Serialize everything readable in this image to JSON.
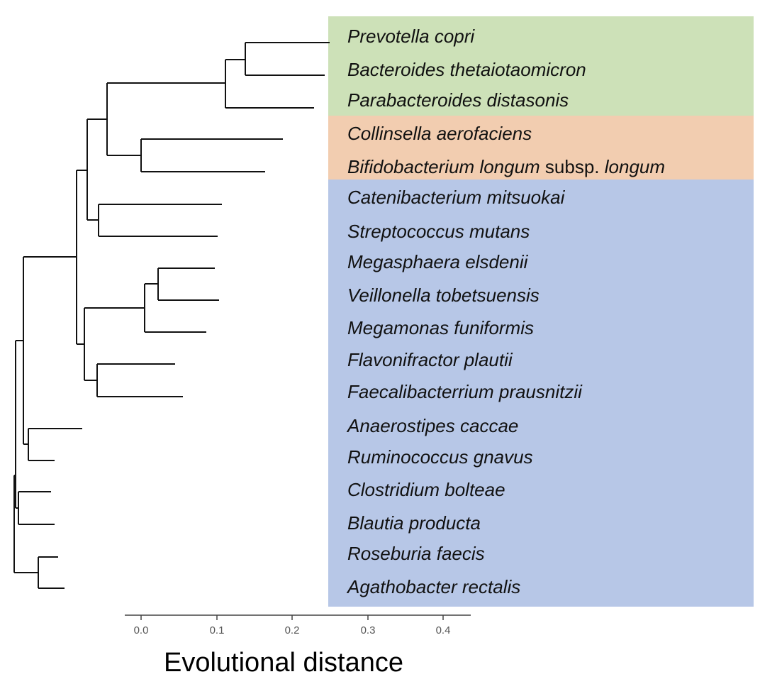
{
  "figure": {
    "axis_title": "Evolutional distance",
    "axis_ticks": [
      "0.0",
      "0.1",
      "0.2",
      "0.3",
      "0.4"
    ]
  },
  "groups": [
    {
      "name": "green",
      "color": "#cde1b8",
      "first_taxon": 0,
      "last_taxon": 2
    },
    {
      "name": "orange",
      "color": "#f2cdb0",
      "first_taxon": 3,
      "last_taxon": 4
    },
    {
      "name": "blue",
      "color": "#b7c7e7",
      "first_taxon": 5,
      "last_taxon": 17
    }
  ],
  "taxa": [
    {
      "label": "Prevotella copri"
    },
    {
      "label": "Bacteroides thetaiotaomicron"
    },
    {
      "label": "Parabacteroides distasonis"
    },
    {
      "label": "Collinsella aerofaciens"
    },
    {
      "label": "Bifidobacterium longum subsp. longum",
      "parts": [
        "Bifidobacterium longum",
        " subsp. ",
        "longum"
      ]
    },
    {
      "label": "Catenibacterium mitsuokai"
    },
    {
      "label": "Streptococcus mutans"
    },
    {
      "label": "Megasphaera elsdenii"
    },
    {
      "label": "Veillonella tobetsuensis"
    },
    {
      "label": "Megamonas funiformis"
    },
    {
      "label": "Flavonifractor plautii"
    },
    {
      "label": "Faecalibacterrium prausnitzii"
    },
    {
      "label": "Anaerostipes caccae"
    },
    {
      "label": "Ruminococcus gnavus"
    },
    {
      "label": "Clostridium bolteae"
    },
    {
      "label": "Blautia producta"
    },
    {
      "label": "Roseburia faecis"
    },
    {
      "label": "Agathobacter rectalis"
    }
  ]
}
